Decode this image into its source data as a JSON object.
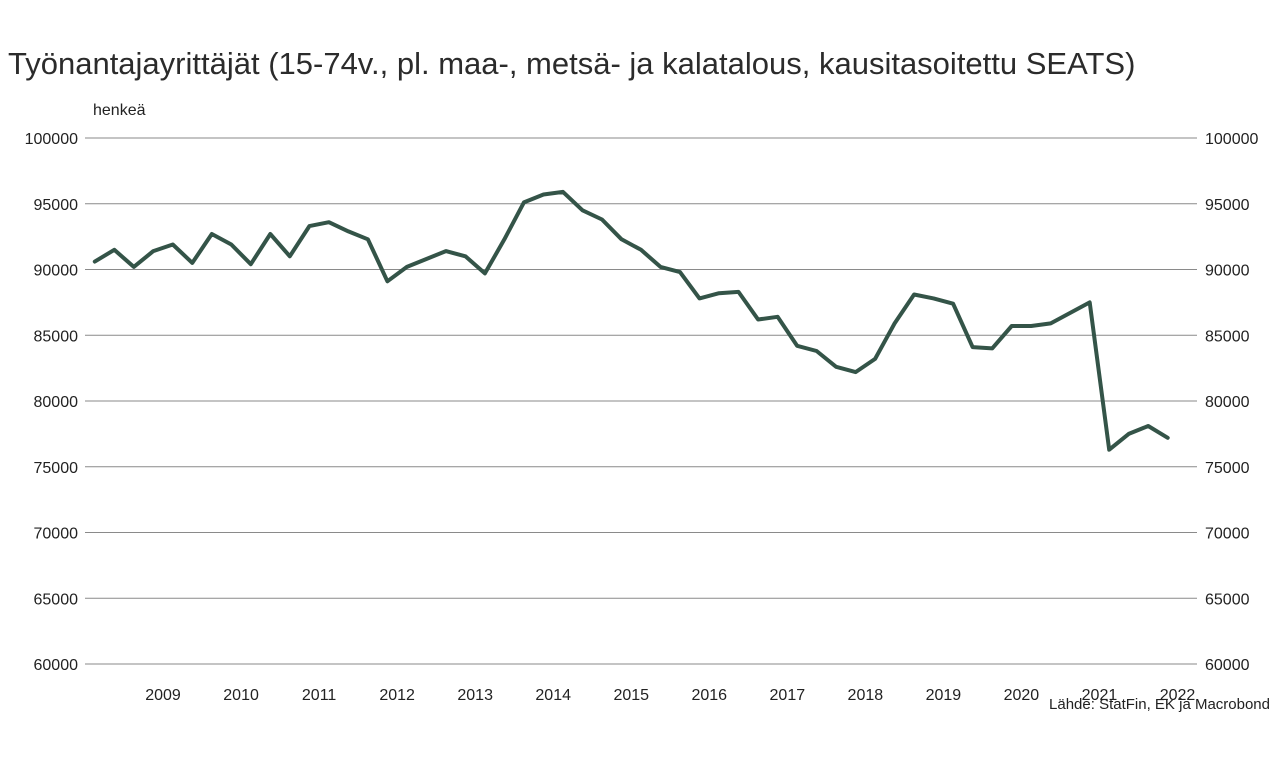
{
  "chart_data": {
    "type": "line",
    "title": "Työnantajayrittäjät (15-74v., pl. maa-, metsä- ja kalatalous, kausitasoitettu SEATS)",
    "ylabel": "henkeä",
    "source": "Lähde: StatFin, EK ja Macrobond",
    "ylim": [
      60000,
      100000
    ],
    "yticks": [
      60000,
      65000,
      70000,
      75000,
      80000,
      85000,
      90000,
      95000,
      100000
    ],
    "ytick_labels": [
      "60000",
      "65000",
      "70000",
      "75000",
      "80000",
      "85000",
      "90000",
      "95000",
      "100000"
    ],
    "xlim": [
      2008.5,
      2022.75
    ],
    "xtick_labels": [
      "2009",
      "2010",
      "2011",
      "2012",
      "2013",
      "2014",
      "2015",
      "2016",
      "2017",
      "2018",
      "2019",
      "2020",
      "2021",
      "2022"
    ],
    "grid": "horizontal",
    "dual_y_axis": true,
    "line_color": "#345448",
    "series": [
      {
        "x": [
          2008.625,
          2008.875,
          2009.125,
          2009.375,
          2009.625,
          2009.875,
          2010.125,
          2010.375,
          2010.625,
          2010.875,
          2011.125,
          2011.375,
          2011.625,
          2011.875,
          2012.125,
          2012.375,
          2012.625,
          2012.875,
          2013.125,
          2013.375,
          2013.625,
          2013.875,
          2014.125,
          2014.375,
          2014.625,
          2014.875,
          2015.125,
          2015.375,
          2015.625,
          2015.875,
          2016.125,
          2016.375,
          2016.625,
          2016.875,
          2017.125,
          2017.375,
          2017.625,
          2017.875,
          2018.125,
          2018.375,
          2018.625,
          2018.875,
          2019.125,
          2019.375,
          2019.625,
          2019.875,
          2020.125,
          2020.375,
          2020.625,
          2020.875,
          2021.125,
          2021.375,
          2021.625,
          2021.875,
          2022.125,
          2022.375
        ],
        "values": [
          90600,
          91500,
          90200,
          91400,
          91900,
          90500,
          92700,
          91900,
          90400,
          92700,
          91000,
          93300,
          93600,
          92900,
          92300,
          89100,
          90200,
          90800,
          91400,
          91000,
          89700,
          92300,
          95100,
          95700,
          95900,
          94500,
          93800,
          92300,
          91500,
          90200,
          89800,
          87800,
          88200,
          88300,
          86200,
          86400,
          84200,
          83800,
          82600,
          82200,
          83200,
          85900,
          88100,
          87800,
          87400,
          84100,
          84000,
          85700,
          85700,
          85900,
          86700,
          87500,
          76300,
          77500,
          78100,
          77200
        ]
      }
    ]
  }
}
